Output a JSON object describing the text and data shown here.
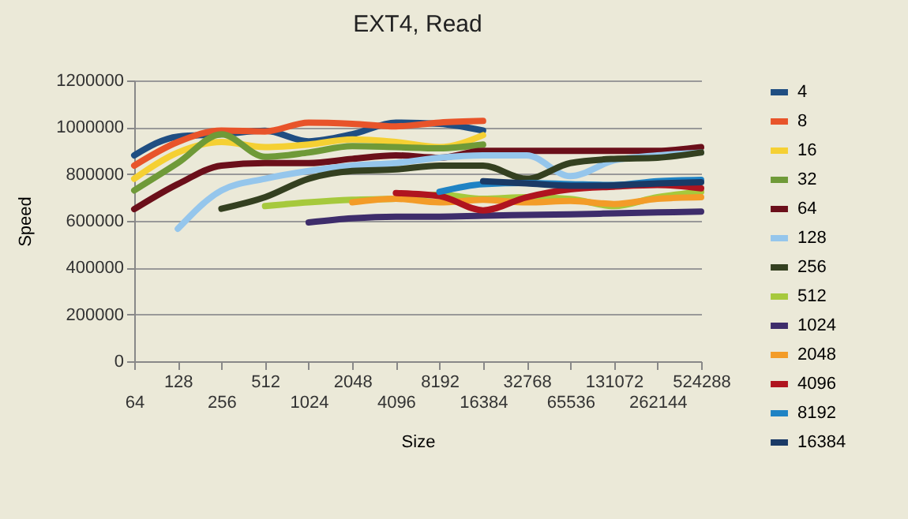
{
  "chart_data": {
    "type": "line",
    "title": "EXT4, Read",
    "xlabel": "Size",
    "ylabel": "Speed",
    "categories": [
      "64",
      "128",
      "256",
      "512",
      "1024",
      "2048",
      "4096",
      "8192",
      "16384",
      "32768",
      "65536",
      "131072",
      "262144",
      "524288"
    ],
    "ylim": [
      0,
      1200000
    ],
    "yticks": [
      0,
      200000,
      400000,
      600000,
      800000,
      1000000,
      1200000
    ],
    "grid": "y",
    "legend": "right",
    "marker": "none",
    "line_style": "solid",
    "series": [
      {
        "name": "4",
        "color": "#1f4e82",
        "values": [
          880000,
          960000,
          970000,
          985000,
          940000,
          970000,
          1020000,
          1015000,
          986000,
          null,
          null,
          null,
          null,
          null
        ]
      },
      {
        "name": "8",
        "color": "#e8542a",
        "values": [
          836000,
          937000,
          986000,
          982000,
          1020000,
          1015000,
          1004000,
          1020000,
          1027000,
          null,
          null,
          null,
          null,
          null
        ]
      },
      {
        "name": "16",
        "color": "#f5d033",
        "values": [
          780000,
          892000,
          937000,
          915000,
          926000,
          948000,
          937000,
          915000,
          966000,
          null,
          null,
          null,
          null,
          null
        ]
      },
      {
        "name": "32",
        "color": "#6f9a38",
        "values": [
          730000,
          847000,
          970000,
          874000,
          892000,
          919000,
          915000,
          910000,
          926000,
          null,
          null,
          null,
          null,
          null
        ]
      },
      {
        "name": "64",
        "color": "#6b0f1a",
        "values": [
          650000,
          757000,
          836000,
          847000,
          847000,
          865000,
          880000,
          870000,
          899000,
          899000,
          899000,
          899000,
          899000,
          915000
        ]
      },
      {
        "name": "128",
        "color": "#95c6ec",
        "values": [
          null,
          566000,
          730000,
          780000,
          813000,
          836000,
          847000,
          870000,
          880000,
          880000,
          791000,
          858000,
          880000,
          892000
        ]
      },
      {
        "name": "256",
        "color": "#344020",
        "values": [
          null,
          null,
          652000,
          701000,
          780000,
          813000,
          820000,
          836000,
          836000,
          780000,
          847000,
          865000,
          870000,
          892000
        ]
      },
      {
        "name": "512",
        "color": "#a6c93c",
        "values": [
          null,
          null,
          null,
          663000,
          679000,
          690000,
          694000,
          712000,
          694000,
          701000,
          694000,
          663000,
          701000,
          724000
        ]
      },
      {
        "name": "1024",
        "color": "#3e2d6b",
        "values": [
          null,
          null,
          null,
          null,
          593000,
          611000,
          618000,
          618000,
          622000,
          625000,
          628000,
          632000,
          636000,
          640000
        ]
      },
      {
        "name": "2048",
        "color": "#f39c28",
        "values": [
          null,
          null,
          null,
          null,
          null,
          679000,
          694000,
          679000,
          690000,
          679000,
          685000,
          672000,
          694000,
          701000
        ]
      },
      {
        "name": "4096",
        "color": "#b0141f",
        "values": [
          null,
          null,
          null,
          null,
          null,
          null,
          719000,
          706000,
          645000,
          701000,
          735000,
          746000,
          753000,
          739000
        ]
      },
      {
        "name": "8192",
        "color": "#1f83c4",
        "values": [
          null,
          null,
          null,
          null,
          null,
          null,
          null,
          724000,
          757000,
          762000,
          757000,
          753000,
          769000,
          775000
        ]
      },
      {
        "name": "16384",
        "color": "#1a3a66",
        "values": [
          null,
          null,
          null,
          null,
          null,
          null,
          null,
          null,
          769000,
          760000,
          750000,
          752000,
          760000,
          765000
        ]
      }
    ]
  }
}
